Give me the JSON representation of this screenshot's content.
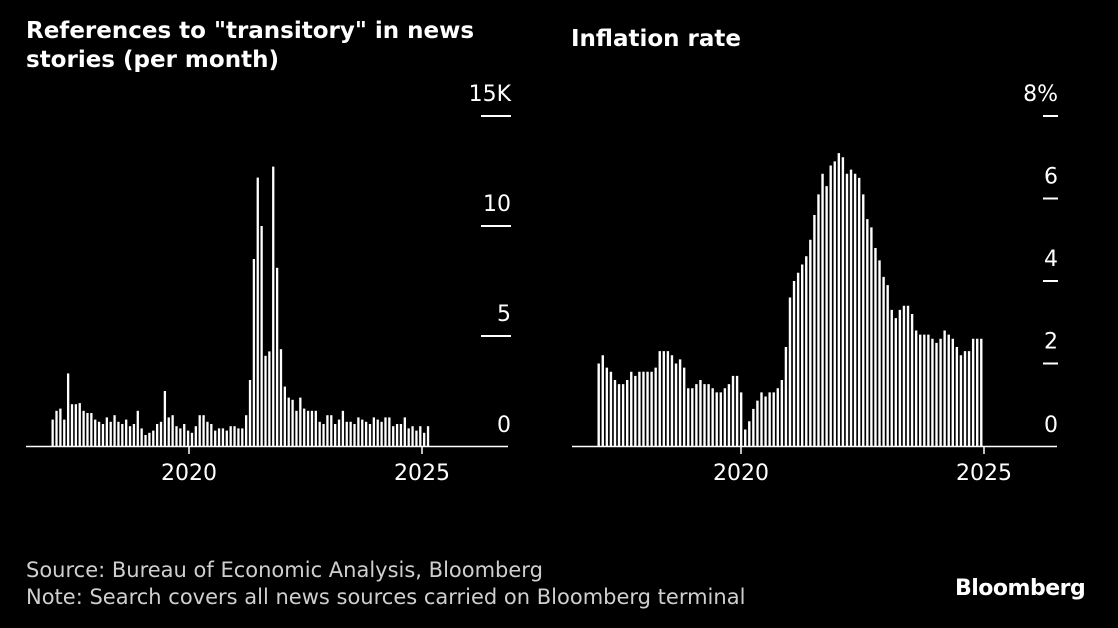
{
  "footer": {
    "source": "Source: Bureau of Economic Analysis, Bloomberg",
    "note": "Note: Search covers all news sources carried on Bloomberg terminal",
    "logo": "Bloomberg"
  },
  "colors": {
    "background": "#000000",
    "bars": "#ffffff",
    "axis": "#ffffff",
    "footer_text": "#cfcfcf"
  },
  "chart_data": [
    {
      "type": "bar",
      "title": "References to \"transitory\" in news stories (per month)",
      "x_start": "2017-04",
      "x_ticks": [
        "2020",
        "2025"
      ],
      "y_ticks": [
        "0",
        "5",
        "10",
        "15K"
      ],
      "ylim": [
        0,
        15000
      ],
      "values": [
        1200,
        1600,
        1700,
        1200,
        3300,
        1900,
        1900,
        1950,
        1600,
        1500,
        1500,
        1200,
        1100,
        1000,
        1300,
        1100,
        1400,
        1100,
        1000,
        1200,
        900,
        1000,
        1600,
        800,
        500,
        600,
        700,
        1000,
        1100,
        2500,
        1300,
        1400,
        900,
        800,
        1000,
        700,
        600,
        900,
        1400,
        1400,
        1100,
        1000,
        700,
        800,
        800,
        700,
        900,
        900,
        800,
        800,
        1400,
        3000,
        8500,
        12200,
        10000,
        4100,
        4300,
        12700,
        8100,
        4400,
        2700,
        2200,
        2100,
        1600,
        2200,
        1700,
        1600,
        1600,
        1600,
        1100,
        1000,
        1400,
        1400,
        1000,
        1200,
        1600,
        1100,
        1100,
        1000,
        1300,
        1200,
        1100,
        1000,
        1300,
        1200,
        1100,
        1300,
        1300,
        900,
        1000,
        1000,
        1300,
        800,
        900,
        700,
        900,
        600,
        900
      ],
      "bar_color": "#ffffff"
    },
    {
      "type": "bar",
      "title": "Inflation rate",
      "x_start": "2017-04",
      "x_ticks": [
        "2020",
        "2025"
      ],
      "y_ticks": [
        "0",
        "2",
        "4",
        "6",
        "8%"
      ],
      "ylim": [
        0,
        8
      ],
      "values": [
        2.0,
        2.2,
        1.9,
        1.8,
        1.6,
        1.5,
        1.5,
        1.6,
        1.8,
        1.7,
        1.8,
        1.8,
        1.8,
        1.8,
        1.9,
        2.3,
        2.3,
        2.3,
        2.2,
        2.0,
        2.1,
        1.9,
        1.4,
        1.4,
        1.5,
        1.6,
        1.5,
        1.5,
        1.4,
        1.3,
        1.3,
        1.4,
        1.5,
        1.7,
        1.7,
        1.3,
        0.4,
        0.6,
        0.9,
        1.1,
        1.3,
        1.2,
        1.3,
        1.3,
        1.4,
        1.6,
        2.4,
        3.6,
        4.0,
        4.2,
        4.4,
        4.6,
        5.0,
        5.6,
        6.1,
        6.6,
        6.3,
        6.8,
        6.9,
        7.1,
        7.0,
        6.6,
        6.7,
        6.6,
        6.5,
        6.1,
        5.5,
        5.3,
        4.8,
        4.5,
        4.1,
        3.9,
        3.3,
        3.1,
        3.3,
        3.4,
        3.4,
        3.2,
        2.8,
        2.7,
        2.7,
        2.7,
        2.6,
        2.5,
        2.6,
        2.8,
        2.7,
        2.6,
        2.4,
        2.2,
        2.3,
        2.3,
        2.6,
        2.6,
        2.6
      ],
      "bar_color": "#ffffff"
    }
  ]
}
